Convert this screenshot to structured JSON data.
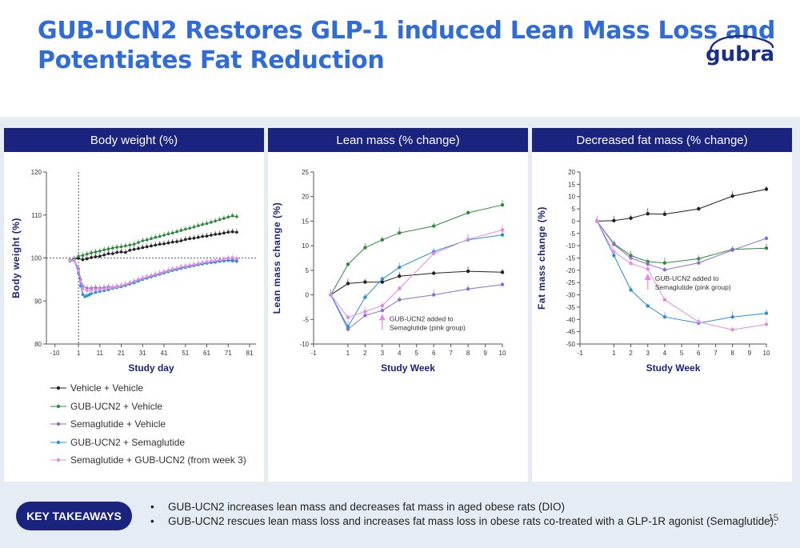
{
  "title_lines": [
    "GUB-UCN2 Restores GLP-1 induced Lean Mass Loss and",
    "Potentiates Fat Reduction"
  ],
  "logo_text": "gubra",
  "colors": {
    "title": "#2f6bd9",
    "header": "#1a237e",
    "band": "#e6ecf4",
    "black": "#222222",
    "green": "#2e8b3a",
    "purple": "#8a6fd0",
    "blue": "#2b8fe0",
    "pink": "#e58ae0"
  },
  "panels": {
    "body_weight": {
      "header": "Body weight (%)"
    },
    "lean_mass": {
      "header": "Lean mass (% change)"
    },
    "fat_mass": {
      "header": "Decreased fat mass (% change)"
    }
  },
  "legend": [
    {
      "label": "Vehicle + Vehicle",
      "color": "#222222"
    },
    {
      "label": "GUB-UCN2 + Vehicle",
      "color": "#2e8b3a"
    },
    {
      "label": "Semaglutide + Vehicle",
      "color": "#8a6fd0"
    },
    {
      "label": "GUB-UCN2 +  Semaglutide",
      "color": "#2b8fe0"
    },
    {
      "label": "Semaglutide + GUB-UCN2 (from week 3)",
      "color": "#e58ae0"
    }
  ],
  "takeaways": {
    "button": "KEY TAKEAWAYS",
    "bullets": [
      "GUB-UCN2 increases lean mass and decreases fat mass in aged obese rats (DIO)",
      "GUB-UCN2 rescues lean mass loss and increases fat mass loss in obese rats co-treated with a GLP-1R agonist (Semaglutide)."
    ]
  },
  "page_number": "15",
  "chart_data": [
    {
      "type": "line",
      "title": "Body weight (%)",
      "xlabel": "Study day",
      "ylabel": "Body weight (%)",
      "xlim": [
        -14,
        84
      ],
      "ylim": [
        80,
        120
      ],
      "xticks": [
        -10,
        1,
        11,
        21,
        31,
        41,
        51,
        61,
        71,
        81
      ],
      "yticks": [
        80,
        90,
        100,
        110,
        120
      ],
      "reference_lines": {
        "x": 1,
        "y": 100
      },
      "series": [
        {
          "name": "Vehicle + Vehicle",
          "color": "#222222",
          "x": [
            -3,
            -1,
            1,
            3,
            5,
            7,
            9,
            11,
            13,
            15,
            17,
            19,
            21,
            23,
            25,
            27,
            29,
            31,
            33,
            35,
            37,
            39,
            41,
            43,
            45,
            47,
            49,
            51,
            53,
            55,
            57,
            59,
            61,
            63,
            65,
            67,
            69,
            71,
            73,
            75
          ],
          "y": [
            99.5,
            99.7,
            99.9,
            99.6,
            99.8,
            100.1,
            100.3,
            100.4,
            100.7,
            101.0,
            101.0,
            101.3,
            101.4,
            101.3,
            101.8,
            102.0,
            102.2,
            102.4,
            102.6,
            102.8,
            103.0,
            103.2,
            103.3,
            103.5,
            103.7,
            103.8,
            104.0,
            104.3,
            104.5,
            104.6,
            104.8,
            105.0,
            105.1,
            105.3,
            105.5,
            105.6,
            105.8,
            106.0,
            106.1,
            106.0
          ]
        },
        {
          "name": "GUB-UCN2 + Vehicle",
          "color": "#2e8b3a",
          "x": [
            -3,
            -1,
            1,
            3,
            5,
            7,
            9,
            11,
            13,
            15,
            17,
            19,
            21,
            23,
            25,
            27,
            29,
            31,
            33,
            35,
            37,
            39,
            41,
            43,
            45,
            47,
            49,
            51,
            53,
            55,
            57,
            59,
            61,
            63,
            65,
            67,
            69,
            71,
            73,
            75
          ],
          "y": [
            99.5,
            99.8,
            100.4,
            100.6,
            100.9,
            101.2,
            101.4,
            101.6,
            101.9,
            102.1,
            102.3,
            102.5,
            102.6,
            102.8,
            103.0,
            103.2,
            103.6,
            104.0,
            104.2,
            104.5,
            104.8,
            105.0,
            105.3,
            105.6,
            105.8,
            106.1,
            106.4,
            106.7,
            106.9,
            107.2,
            107.5,
            107.8,
            108.0,
            108.3,
            108.6,
            108.9,
            109.2,
            109.5,
            109.8,
            109.6
          ]
        },
        {
          "name": "Semaglutide + Vehicle",
          "color": "#8a6fd0",
          "x": [
            -3,
            -1,
            1,
            2,
            3,
            5,
            7,
            9,
            11,
            13,
            15,
            17,
            19,
            21,
            23,
            25,
            27,
            29,
            31,
            33,
            35,
            37,
            39,
            41,
            43,
            45,
            47,
            49,
            51,
            53,
            55,
            57,
            59,
            61,
            63,
            65,
            67,
            69,
            71,
            73,
            75
          ],
          "y": [
            99.3,
            99.5,
            97.5,
            95.0,
            93.4,
            93.0,
            93.0,
            93.1,
            93.0,
            93.1,
            93.3,
            93.2,
            93.4,
            93.5,
            93.8,
            94.1,
            94.5,
            94.9,
            95.2,
            95.5,
            95.8,
            96.0,
            96.3,
            96.6,
            96.9,
            97.2,
            97.5,
            97.7,
            97.9,
            98.1,
            98.3,
            98.5,
            98.7,
            98.8,
            99.0,
            99.1,
            99.3,
            99.4,
            99.5,
            99.6,
            99.5
          ]
        },
        {
          "name": "GUB-UCN2 +  Semaglutide",
          "color": "#2b8fe0",
          "x": [
            -3,
            -1,
            1,
            2,
            3,
            4,
            5,
            6,
            7,
            9,
            11,
            13,
            15,
            17,
            19,
            21,
            23,
            25,
            27,
            29,
            31,
            33,
            35,
            37,
            39,
            41,
            43,
            45,
            47,
            49,
            51,
            53,
            55,
            57,
            59,
            61,
            63,
            65,
            67,
            69,
            71,
            73,
            75
          ],
          "y": [
            99.3,
            99.4,
            96.5,
            93.5,
            91.5,
            91.0,
            91.2,
            91.4,
            91.7,
            92.0,
            92.2,
            92.4,
            92.6,
            92.9,
            93.1,
            93.3,
            93.6,
            93.9,
            94.2,
            94.6,
            95.0,
            95.3,
            95.6,
            95.9,
            96.2,
            96.5,
            96.8,
            97.1,
            97.3,
            97.6,
            97.8,
            98.0,
            98.2,
            98.4,
            98.6,
            98.8,
            98.9,
            99.0,
            99.2,
            99.3,
            99.4,
            99.3,
            99.2
          ]
        },
        {
          "name": "Semaglutide + GUB-UCN2 (from week 3)",
          "color": "#e58ae0",
          "x": [
            -3,
            -1,
            1,
            2,
            3,
            5,
            7,
            9,
            11,
            13,
            15,
            17,
            19,
            21,
            23,
            25,
            27,
            29,
            31,
            33,
            35,
            37,
            39,
            41,
            43,
            45,
            47,
            49,
            51,
            53,
            55,
            57,
            59,
            61,
            63,
            65,
            67,
            69,
            71,
            73,
            75
          ],
          "y": [
            99.4,
            99.5,
            97.0,
            94.5,
            92.8,
            92.4,
            92.5,
            92.6,
            92.7,
            92.8,
            93.0,
            93.1,
            93.3,
            93.6,
            93.9,
            94.2,
            94.6,
            95.0,
            95.3,
            95.6,
            95.9,
            96.2,
            96.5,
            96.8,
            97.1,
            97.4,
            97.6,
            97.9,
            98.1,
            98.3,
            98.5,
            98.7,
            98.9,
            99.1,
            99.3,
            99.4,
            99.6,
            99.8,
            100.0,
            100.1,
            99.9
          ]
        }
      ]
    },
    {
      "type": "line",
      "title": "Lean mass (% change)",
      "xlabel": "Study Week",
      "ylabel": "Lean mass change (%)",
      "xlim": [
        -1,
        10
      ],
      "ylim": [
        -10,
        25
      ],
      "xticks": [
        -1,
        1,
        2,
        3,
        4,
        5,
        6,
        7,
        8,
        9,
        10
      ],
      "yticks": [
        -10,
        -5,
        0,
        5,
        10,
        15,
        20,
        25
      ],
      "annotation": {
        "text_lines": [
          "GUB-UCN2 added to",
          "Semaglutide (pink group)"
        ],
        "x": 3,
        "y": -4.2
      },
      "series": [
        {
          "name": "Vehicle + Vehicle",
          "color": "#222222",
          "x": [
            0,
            1,
            2,
            3,
            4,
            6,
            8,
            10
          ],
          "y": [
            0,
            2.3,
            2.6,
            2.6,
            3.8,
            4.4,
            4.8,
            4.6
          ]
        },
        {
          "name": "GUB-UCN2 + Vehicle",
          "color": "#2e8b3a",
          "x": [
            0,
            1,
            2,
            3,
            4,
            6,
            8,
            10
          ],
          "y": [
            0,
            6.2,
            9.6,
            11.2,
            12.6,
            14.0,
            16.7,
            18.3
          ]
        },
        {
          "name": "Semaglutide + Vehicle",
          "color": "#8a6fd0",
          "x": [
            0,
            1,
            2,
            3,
            4,
            6,
            8,
            10
          ],
          "y": [
            0,
            -7.0,
            -4.2,
            -3.2,
            -1.0,
            0.0,
            1.2,
            2.1
          ]
        },
        {
          "name": "GUB-UCN2 +  Semaglutide",
          "color": "#2b8fe0",
          "x": [
            0,
            1,
            2,
            3,
            4,
            6,
            8,
            10
          ],
          "y": [
            0,
            -6.5,
            -0.5,
            3.2,
            5.6,
            8.8,
            11.2,
            12.2
          ]
        },
        {
          "name": "Semaglutide + GUB-UCN2 (from week 3)",
          "color": "#e58ae0",
          "x": [
            0,
            1,
            2,
            3,
            4,
            6,
            8,
            10
          ],
          "y": [
            0,
            -4.6,
            -3.4,
            -2.2,
            1.3,
            8.4,
            11.3,
            13.2
          ]
        }
      ]
    },
    {
      "type": "line",
      "title": "Decreased fat mass (% change)",
      "xlabel": "Study Week",
      "ylabel": "Fat mass change (%)",
      "xlim": [
        -1,
        10
      ],
      "ylim": [
        -50,
        20
      ],
      "xticks": [
        -1,
        1,
        2,
        3,
        4,
        5,
        6,
        7,
        8,
        9,
        10
      ],
      "yticks": [
        -50,
        -45,
        -40,
        -35,
        -30,
        -25,
        -20,
        -15,
        -10,
        -5,
        0,
        5,
        10,
        15,
        20
      ],
      "annotation": {
        "text_lines": [
          "GUB-UCN2 added to",
          "Semaglutide (pink group)"
        ],
        "x": 3,
        "y": -22
      },
      "series": [
        {
          "name": "Vehicle + Vehicle",
          "color": "#222222",
          "x": [
            0,
            1,
            2,
            3,
            4,
            6,
            8,
            10
          ],
          "y": [
            0,
            0.2,
            1.2,
            3.0,
            2.8,
            5.0,
            10.2,
            13.0
          ]
        },
        {
          "name": "GUB-UCN2 + Vehicle",
          "color": "#2e8b3a",
          "x": [
            0,
            1,
            2,
            3,
            4,
            6,
            8,
            10
          ],
          "y": [
            0,
            -9.2,
            -14.0,
            -16.5,
            -17.0,
            -15.3,
            -11.5,
            -11.0
          ]
        },
        {
          "name": "Semaglutide + Vehicle",
          "color": "#8a6fd0",
          "x": [
            0,
            1,
            2,
            3,
            4,
            6,
            8,
            10
          ],
          "y": [
            0,
            -9.5,
            -15.0,
            -17.5,
            -19.8,
            -17.0,
            -11.8,
            -7.0
          ]
        },
        {
          "name": "GUB-UCN2 +  Semaglutide",
          "color": "#2b8fe0",
          "x": [
            0,
            1,
            2,
            3,
            4,
            6,
            8,
            10
          ],
          "y": [
            0,
            -14.0,
            -28.0,
            -34.5,
            -39.0,
            -41.5,
            -39.0,
            -37.5
          ]
        },
        {
          "name": "Semaglutide + GUB-UCN2 (from week 3)",
          "color": "#e58ae0",
          "x": [
            0,
            1,
            2,
            3,
            4,
            6,
            8,
            10
          ],
          "y": [
            0,
            -12.5,
            -17.2,
            -19.5,
            -32.0,
            -41.0,
            -44.2,
            -42.0
          ]
        }
      ]
    }
  ]
}
